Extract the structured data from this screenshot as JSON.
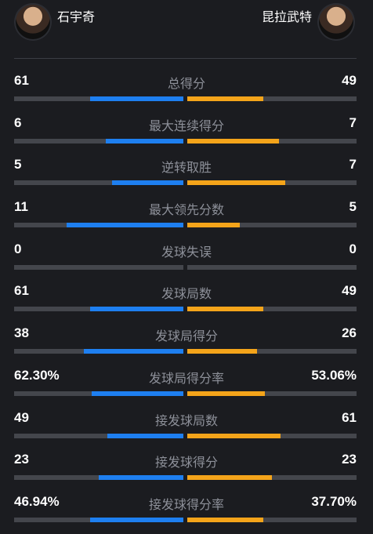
{
  "players": {
    "left": {
      "name": "石宇奇"
    },
    "right": {
      "name": "昆拉武特"
    }
  },
  "colors": {
    "left_bar": "#1e7ff0",
    "right_bar": "#f4a41a",
    "track": "#44464c",
    "background": "#1b1c20"
  },
  "stats": [
    {
      "label": "总得分",
      "left": "61",
      "right": "49",
      "left_ratio": 0.55,
      "right_ratio": 0.45
    },
    {
      "label": "最大连续得分",
      "left": "6",
      "right": "7",
      "left_ratio": 0.46,
      "right_ratio": 0.54
    },
    {
      "label": "逆转取胜",
      "left": "5",
      "right": "7",
      "left_ratio": 0.42,
      "right_ratio": 0.58
    },
    {
      "label": "最大领先分数",
      "left": "11",
      "right": "5",
      "left_ratio": 0.69,
      "right_ratio": 0.31
    },
    {
      "label": "发球失误",
      "left": "0",
      "right": "0",
      "left_ratio": 0,
      "right_ratio": 0
    },
    {
      "label": "发球局数",
      "left": "61",
      "right": "49",
      "left_ratio": 0.55,
      "right_ratio": 0.45
    },
    {
      "label": "发球局得分",
      "left": "38",
      "right": "26",
      "left_ratio": 0.59,
      "right_ratio": 0.41
    },
    {
      "label": "发球局得分率",
      "left": "62.30%",
      "right": "53.06%",
      "left_ratio": 0.54,
      "right_ratio": 0.46
    },
    {
      "label": "接发球局数",
      "left": "49",
      "right": "61",
      "left_ratio": 0.45,
      "right_ratio": 0.55
    },
    {
      "label": "接发球得分",
      "left": "23",
      "right": "23",
      "left_ratio": 0.5,
      "right_ratio": 0.5
    },
    {
      "label": "接发球得分率",
      "left": "46.94%",
      "right": "37.70%",
      "left_ratio": 0.55,
      "right_ratio": 0.45
    }
  ]
}
